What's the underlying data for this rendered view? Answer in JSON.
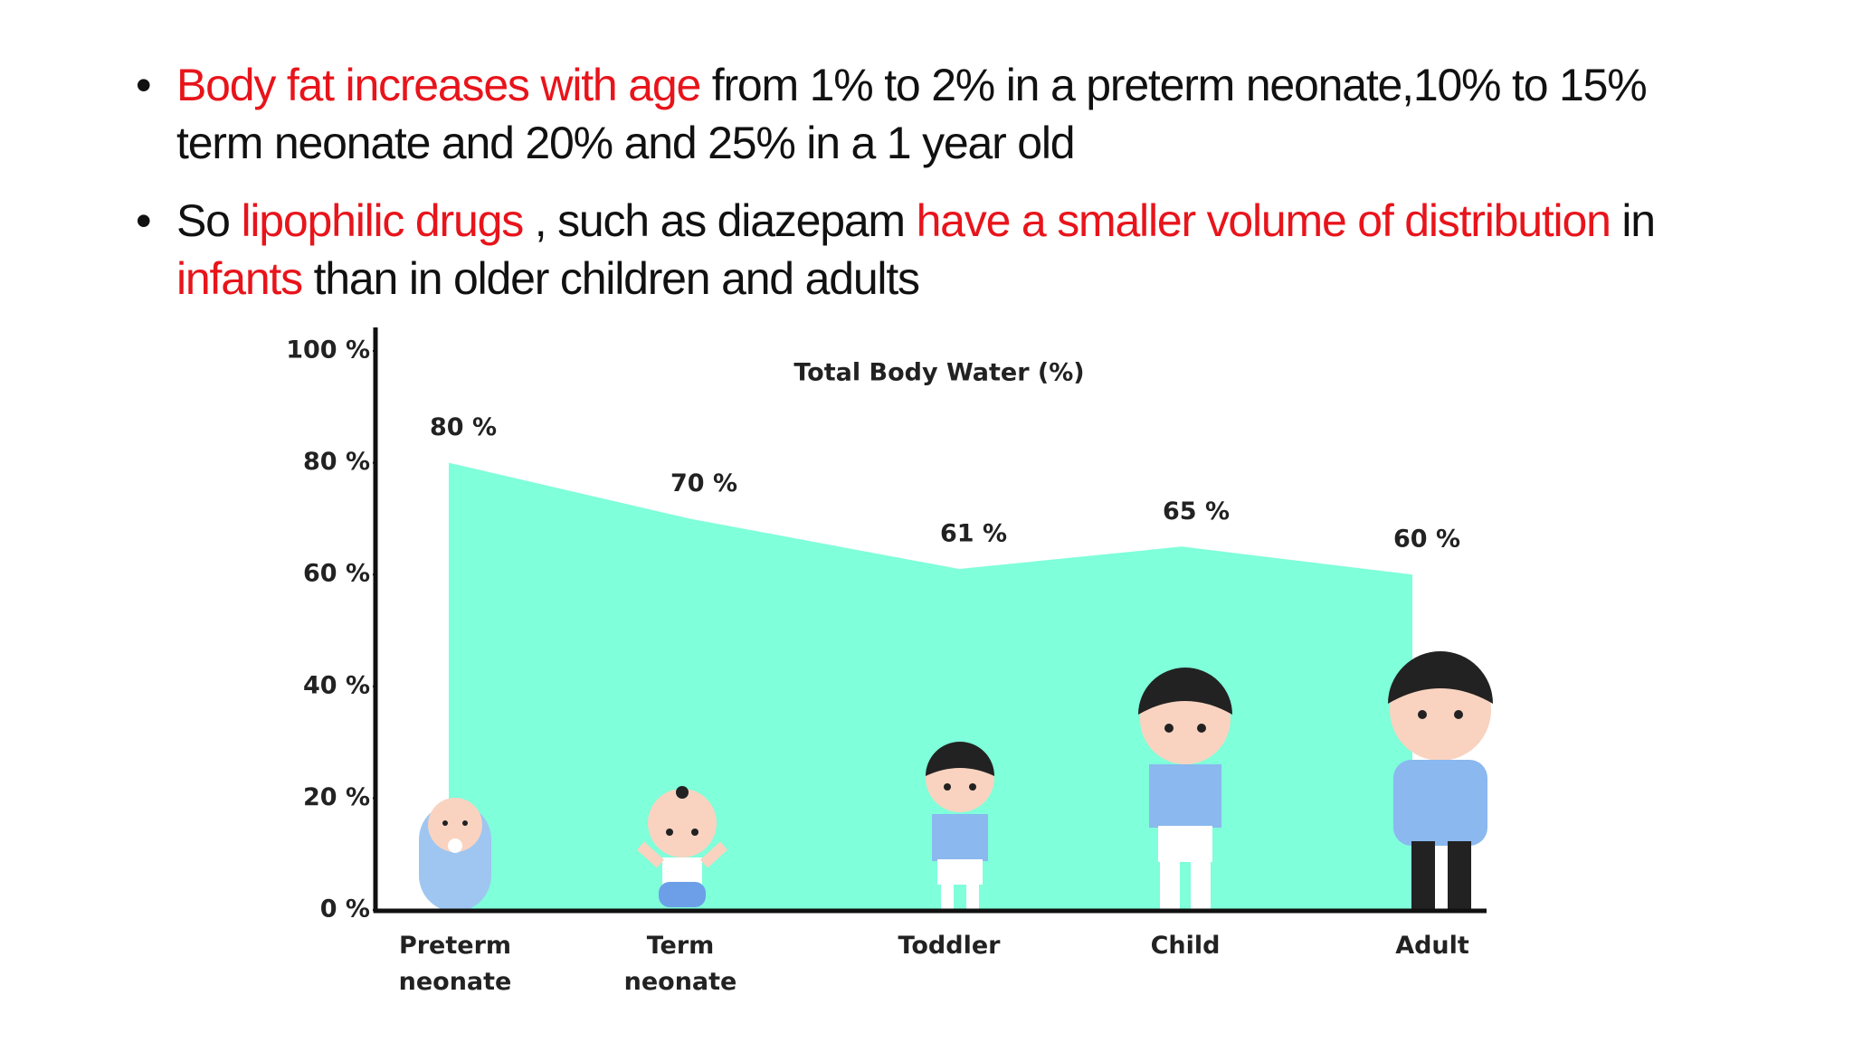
{
  "bullets": [
    {
      "segments": [
        {
          "text": "Body fat increases with age",
          "color": "#e8141b"
        },
        {
          "text": " from 1% to 2% in a preterm neonate,10% to 15% term neonate and 20% and 25% in a 1 year old",
          "color": "#111111"
        }
      ]
    },
    {
      "segments": [
        {
          "text": "So ",
          "color": "#111111"
        },
        {
          "text": "lipophilic drugs",
          "color": "#e8141b"
        },
        {
          "text": " , such as diazepam ",
          "color": "#111111"
        },
        {
          "text": "have a smaller volume of distribution",
          "color": "#e8141b"
        },
        {
          "text": " in ",
          "color": "#111111"
        },
        {
          "text": "infants",
          "color": "#e8141b"
        },
        {
          "text": " than in older children and adults",
          "color": "#111111"
        }
      ]
    }
  ],
  "chart_data": {
    "type": "area",
    "title": "Total Body Water (%)",
    "categories": [
      "Preterm neonate",
      "Term neonate",
      "Toddler",
      "Child",
      "Adult"
    ],
    "values": [
      80,
      70,
      61,
      65,
      60
    ],
    "value_labels": [
      "80 %",
      "70 %",
      "61 %",
      "65 %",
      "60 %"
    ],
    "color": "#7fffda",
    "ylim": [
      0,
      100
    ],
    "yticks": [
      {
        "value": 0,
        "label": "0 %"
      },
      {
        "value": 20,
        "label": "20 %"
      },
      {
        "value": 40,
        "label": "40 %"
      },
      {
        "value": 60,
        "label": "60 %"
      },
      {
        "value": 80,
        "label": "80 %"
      },
      {
        "value": 100,
        "label": "100 %"
      }
    ]
  }
}
